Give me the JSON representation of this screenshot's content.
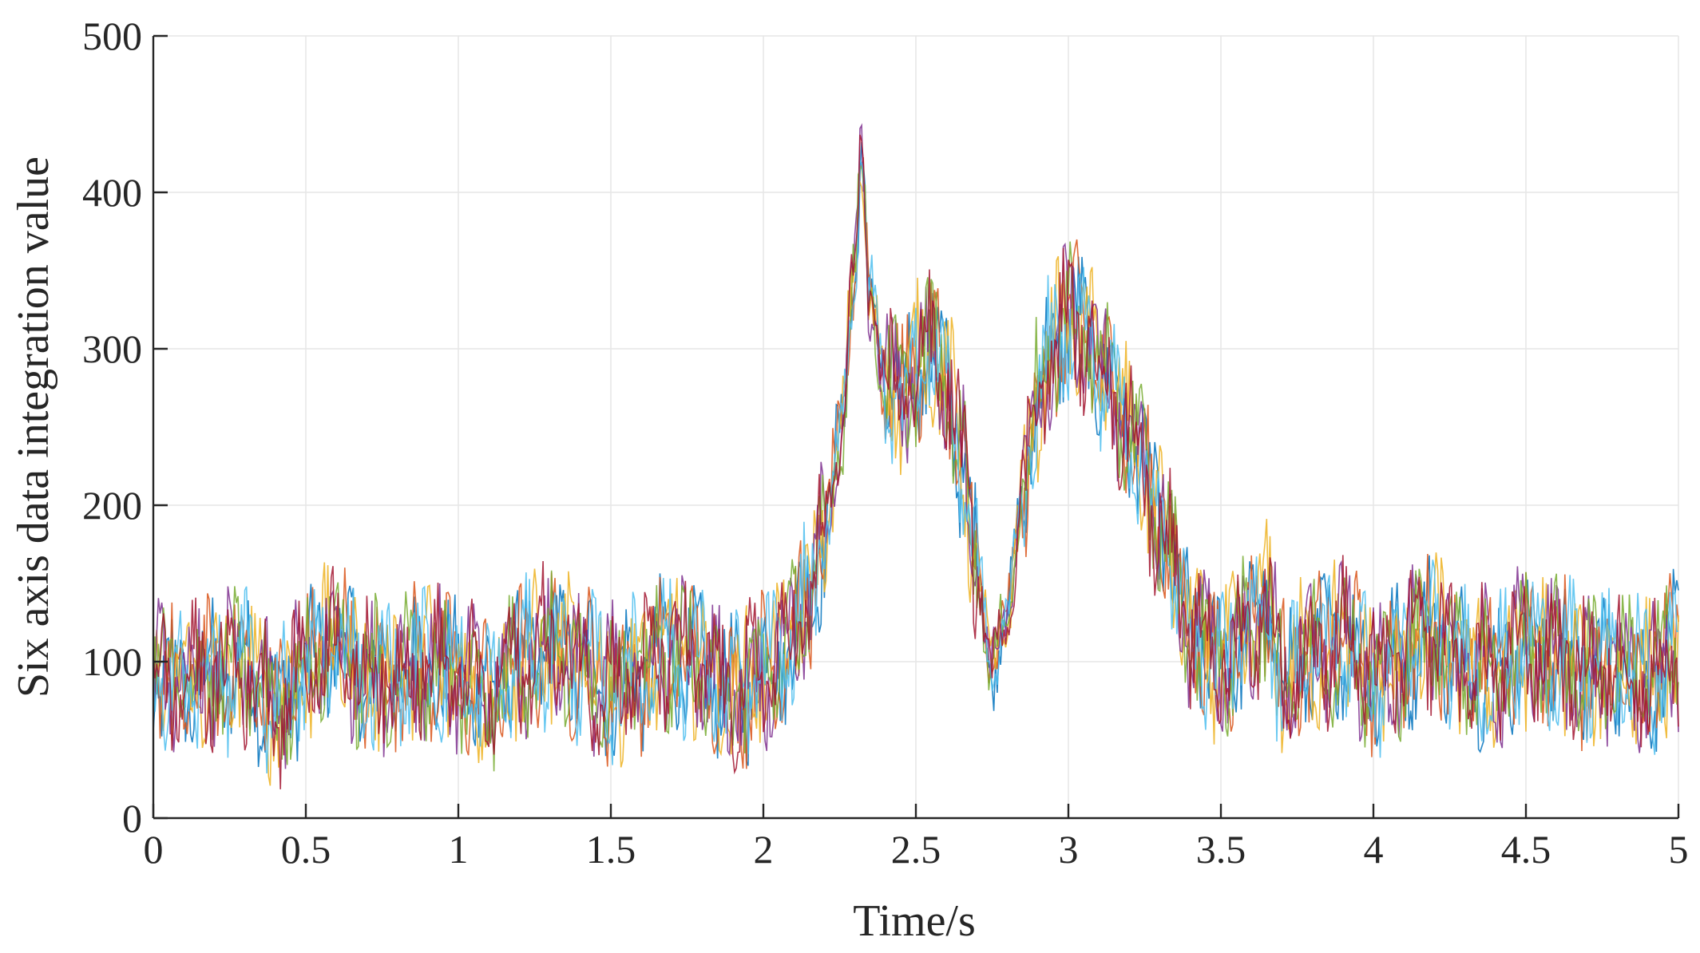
{
  "chart_data": {
    "type": "line",
    "title": "",
    "xlabel": "Time/s",
    "ylabel": "Six axis data integration value",
    "xlim": [
      0,
      5
    ],
    "ylim": [
      0,
      500
    ],
    "xticks": [
      0,
      0.5,
      1,
      1.5,
      2,
      2.5,
      3,
      3.5,
      4,
      4.5,
      5
    ],
    "xtick_labels": [
      "0",
      "0.5",
      "1",
      "1.5",
      "2",
      "2.5",
      "3",
      "3.5",
      "4",
      "4.5",
      "5"
    ],
    "yticks": [
      0,
      100,
      200,
      300,
      400,
      500
    ],
    "ytick_labels": [
      "0",
      "100",
      "200",
      "300",
      "400",
      "500"
    ],
    "grid": true,
    "legend": "none",
    "series_count": 7,
    "series_colors": [
      "#0072BD",
      "#D95319",
      "#EDB120",
      "#7E2F8E",
      "#77AC30",
      "#4DBEEE",
      "#A2142F"
    ],
    "envelope": {
      "description_x": [
        0,
        0.1,
        0.2,
        0.3,
        0.4,
        0.5,
        0.6,
        0.7,
        0.8,
        0.9,
        1.0,
        1.1,
        1.2,
        1.3,
        1.4,
        1.5,
        1.6,
        1.7,
        1.8,
        1.9,
        2.0,
        2.1,
        2.15,
        2.2,
        2.25,
        2.3,
        2.32,
        2.35,
        2.4,
        2.45,
        2.5,
        2.55,
        2.6,
        2.65,
        2.7,
        2.75,
        2.8,
        2.85,
        2.9,
        2.95,
        3.0,
        3.05,
        3.1,
        3.2,
        3.3,
        3.4,
        3.5,
        3.6,
        3.65,
        3.7,
        3.8,
        3.9,
        4.0,
        4.1,
        4.2,
        4.3,
        4.4,
        4.5,
        4.6,
        4.7,
        4.8,
        4.9,
        5.0
      ],
      "center_y": [
        88,
        85,
        92,
        95,
        72,
        95,
        115,
        90,
        95,
        100,
        90,
        80,
        100,
        110,
        100,
        85,
        95,
        108,
        95,
        80,
        95,
        115,
        140,
        180,
        240,
        350,
        420,
        330,
        280,
        270,
        290,
        300,
        280,
        230,
        160,
        95,
        130,
        210,
        270,
        300,
        320,
        310,
        290,
        250,
        190,
        120,
        100,
        120,
        140,
        90,
        105,
        115,
        90,
        105,
        120,
        100,
        95,
        110,
        105,
        95,
        100,
        90,
        105
      ]
    }
  }
}
